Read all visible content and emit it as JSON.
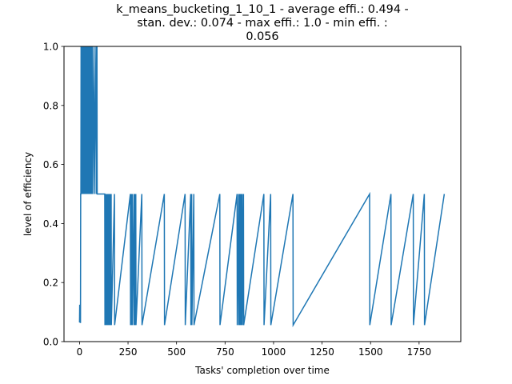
{
  "chart_data": {
    "type": "line",
    "title_lines": [
      "k_means_bucketing_1_10_1 - average effi.: 0.494 -",
      "stan. dev.: 0.074 - max effi.: 1.0 - min effi. :",
      "0.056"
    ],
    "xlabel": "Tasks' completion over time",
    "ylabel": "level of efficiency",
    "xlim": [
      -80,
      1965
    ],
    "ylim": [
      0.0,
      1.0
    ],
    "xticks": [
      0,
      250,
      500,
      750,
      1000,
      1250,
      1500,
      1750
    ],
    "yticks": [
      0.0,
      0.2,
      0.4,
      0.6,
      0.8,
      1.0
    ],
    "xtick_labels": [
      "0",
      "250",
      "500",
      "750",
      "1000",
      "1250",
      "1500",
      "1750"
    ],
    "ytick_labels": [
      "0.0",
      "0.2",
      "0.4",
      "0.6",
      "0.8",
      "1.0"
    ],
    "grid": false,
    "series_color": "#1f77b4",
    "series": [
      {
        "x": [
          0,
          1,
          2,
          3,
          4,
          5,
          6,
          7,
          8,
          9,
          10,
          11,
          13,
          14,
          16,
          17,
          19,
          20,
          22,
          23,
          26,
          27,
          30,
          31,
          34,
          35,
          38,
          39,
          42,
          43,
          46,
          47,
          50,
          51,
          55,
          56,
          60,
          61,
          66,
          67,
          75,
          76,
          85,
          86,
          90,
          91,
          130,
          131,
          134,
          135,
          138,
          139,
          142,
          143,
          147,
          148,
          152,
          153,
          158,
          159,
          163,
          164,
          180,
          181,
          262,
          263,
          267,
          268,
          272,
          273,
          281,
          282,
          286,
          287,
          290,
          291,
          321,
          322,
          437,
          438,
          544,
          545,
          573,
          574,
          578,
          579,
          589,
          590,
          723,
          724,
          812,
          813,
          820,
          821,
          826,
          827,
          832,
          833,
          838,
          839,
          845,
          846,
          950,
          951,
          985,
          986,
          1100,
          1101,
          1495,
          1496,
          1605,
          1606,
          1720,
          1721,
          1777,
          1778,
          1880
        ],
        "y": [
          0.065,
          0.125,
          0.065,
          0.12,
          0.065,
          0.065,
          0.5,
          0.5,
          1.0,
          0.5,
          1.0,
          0.5,
          1.0,
          0.5,
          1.0,
          0.5,
          1.0,
          0.5,
          1.0,
          0.5,
          1.0,
          0.5,
          1.0,
          0.5,
          1.0,
          0.5,
          1.0,
          0.5,
          1.0,
          0.5,
          1.0,
          0.5,
          1.0,
          0.5,
          1.0,
          0.5,
          1.0,
          0.5,
          1.0,
          0.5,
          1.0,
          0.5,
          1.0,
          0.5,
          1.0,
          0.5,
          0.5,
          0.056,
          0.5,
          0.056,
          0.5,
          0.056,
          0.5,
          0.056,
          0.5,
          0.056,
          0.5,
          0.056,
          0.5,
          0.056,
          0.5,
          0.056,
          0.5,
          0.056,
          0.5,
          0.056,
          0.5,
          0.056,
          0.5,
          0.056,
          0.5,
          0.056,
          0.5,
          0.056,
          0.5,
          0.056,
          0.5,
          0.056,
          0.5,
          0.056,
          0.5,
          0.056,
          0.5,
          0.056,
          0.5,
          0.056,
          0.5,
          0.056,
          0.5,
          0.056,
          0.5,
          0.056,
          0.5,
          0.056,
          0.5,
          0.056,
          0.5,
          0.056,
          0.5,
          0.056,
          0.5,
          0.056,
          0.5,
          0.056,
          0.5,
          0.056,
          0.5,
          0.056,
          0.5,
          0.056,
          0.5,
          0.056,
          0.5,
          0.056,
          0.5,
          0.056,
          0.5
        ]
      }
    ]
  }
}
